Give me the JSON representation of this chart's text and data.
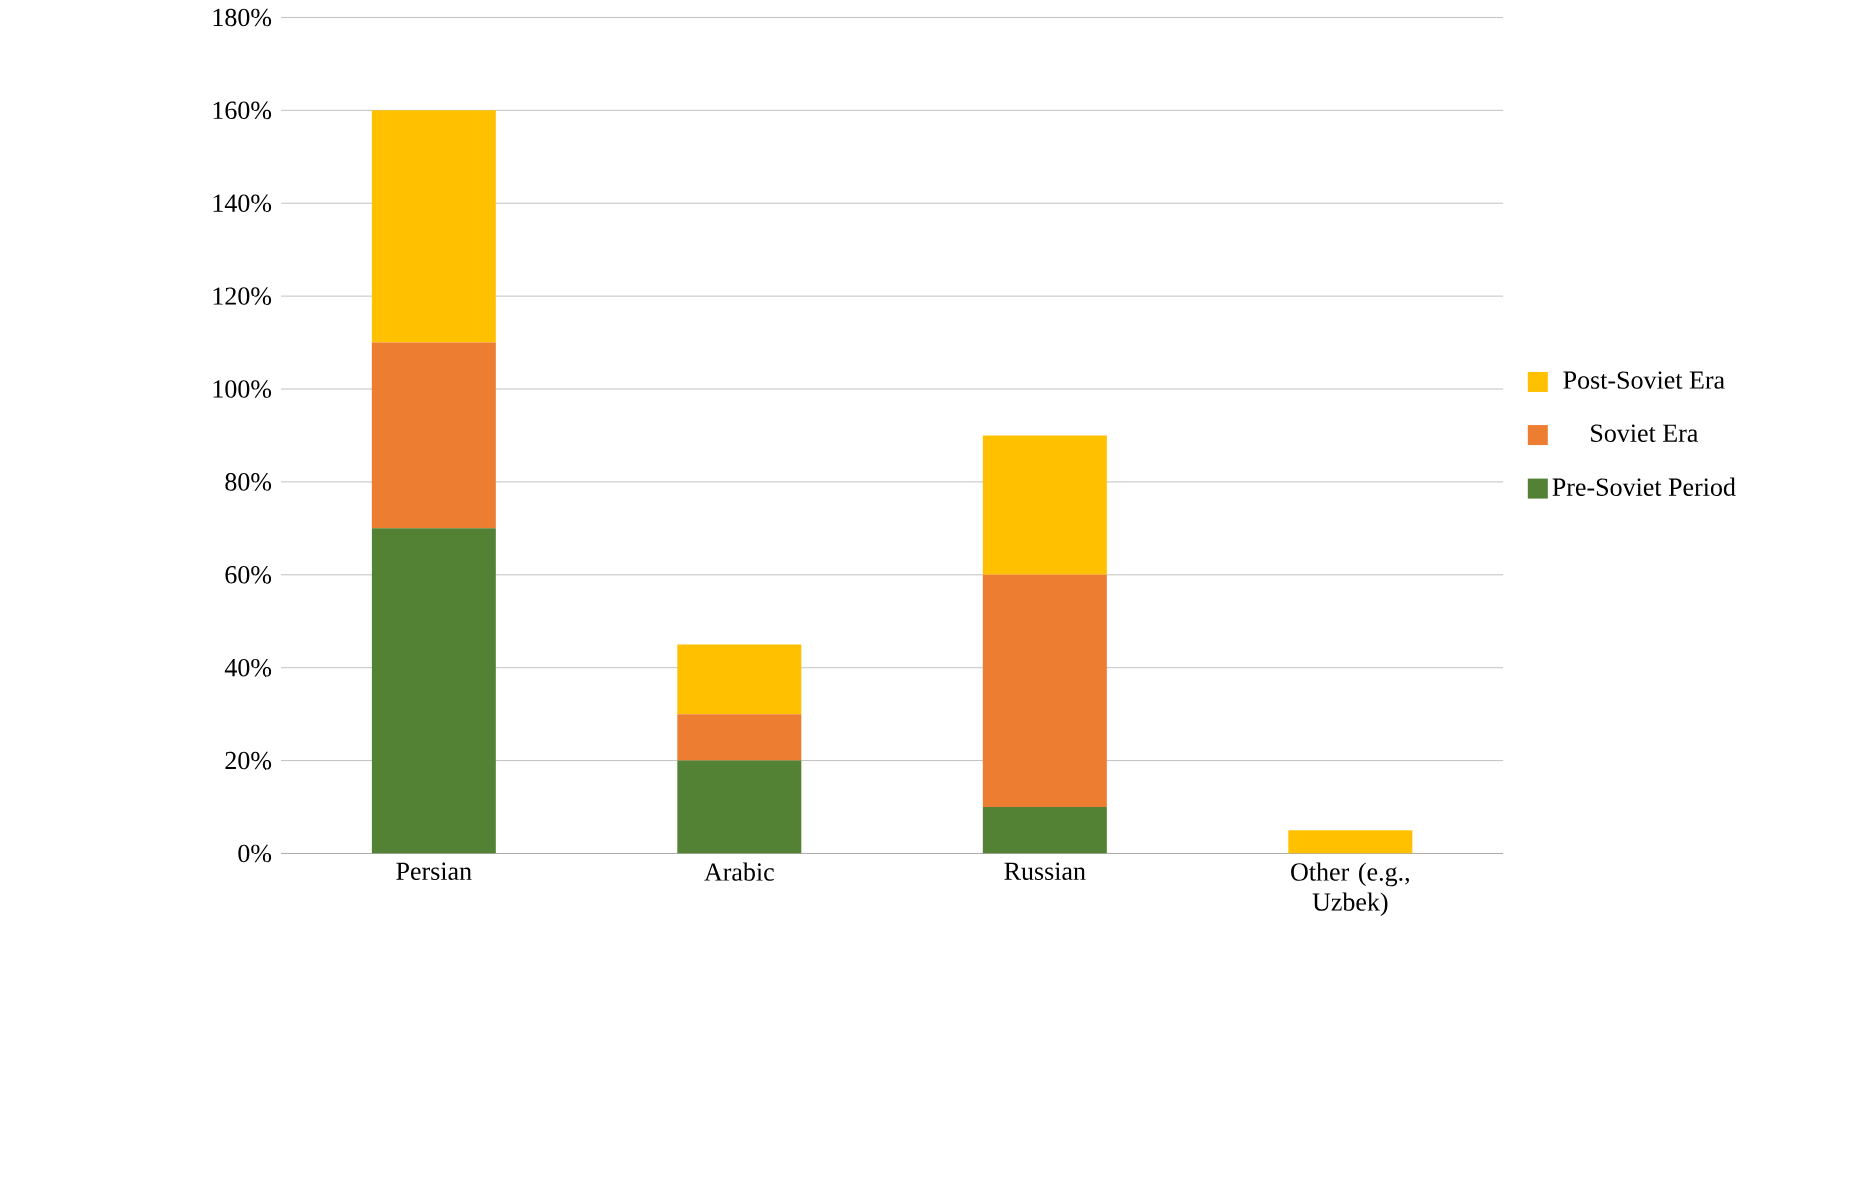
{
  "chart_data": {
    "type": "bar",
    "stacked": true,
    "categories": [
      "Persian",
      "Arabic",
      "Russian",
      "Other (e.g., Uzbek)"
    ],
    "series": [
      {
        "name": "Pre-Soviet Period",
        "color": "#548235",
        "values": [
          70,
          20,
          10,
          0
        ]
      },
      {
        "name": "Soviet Era",
        "color": "#ed7d31",
        "values": [
          40,
          10,
          50,
          0
        ]
      },
      {
        "name": "Post-Soviet Era",
        "color": "#ffc000",
        "values": [
          50,
          15,
          30,
          5
        ]
      }
    ],
    "ylim": [
      0,
      180
    ],
    "yticks": [
      {
        "value": 0,
        "label": "0%"
      },
      {
        "value": 20,
        "label": "20%"
      },
      {
        "value": 40,
        "label": "40%"
      },
      {
        "value": 60,
        "label": "60%"
      },
      {
        "value": 80,
        "label": "80%"
      },
      {
        "value": 100,
        "label": "100%"
      },
      {
        "value": 120,
        "label": "120%"
      },
      {
        "value": 140,
        "label": "140%"
      },
      {
        "value": 160,
        "label": "160%"
      },
      {
        "value": 180,
        "label": "180%"
      }
    ],
    "grid": "y",
    "legend": "right"
  }
}
